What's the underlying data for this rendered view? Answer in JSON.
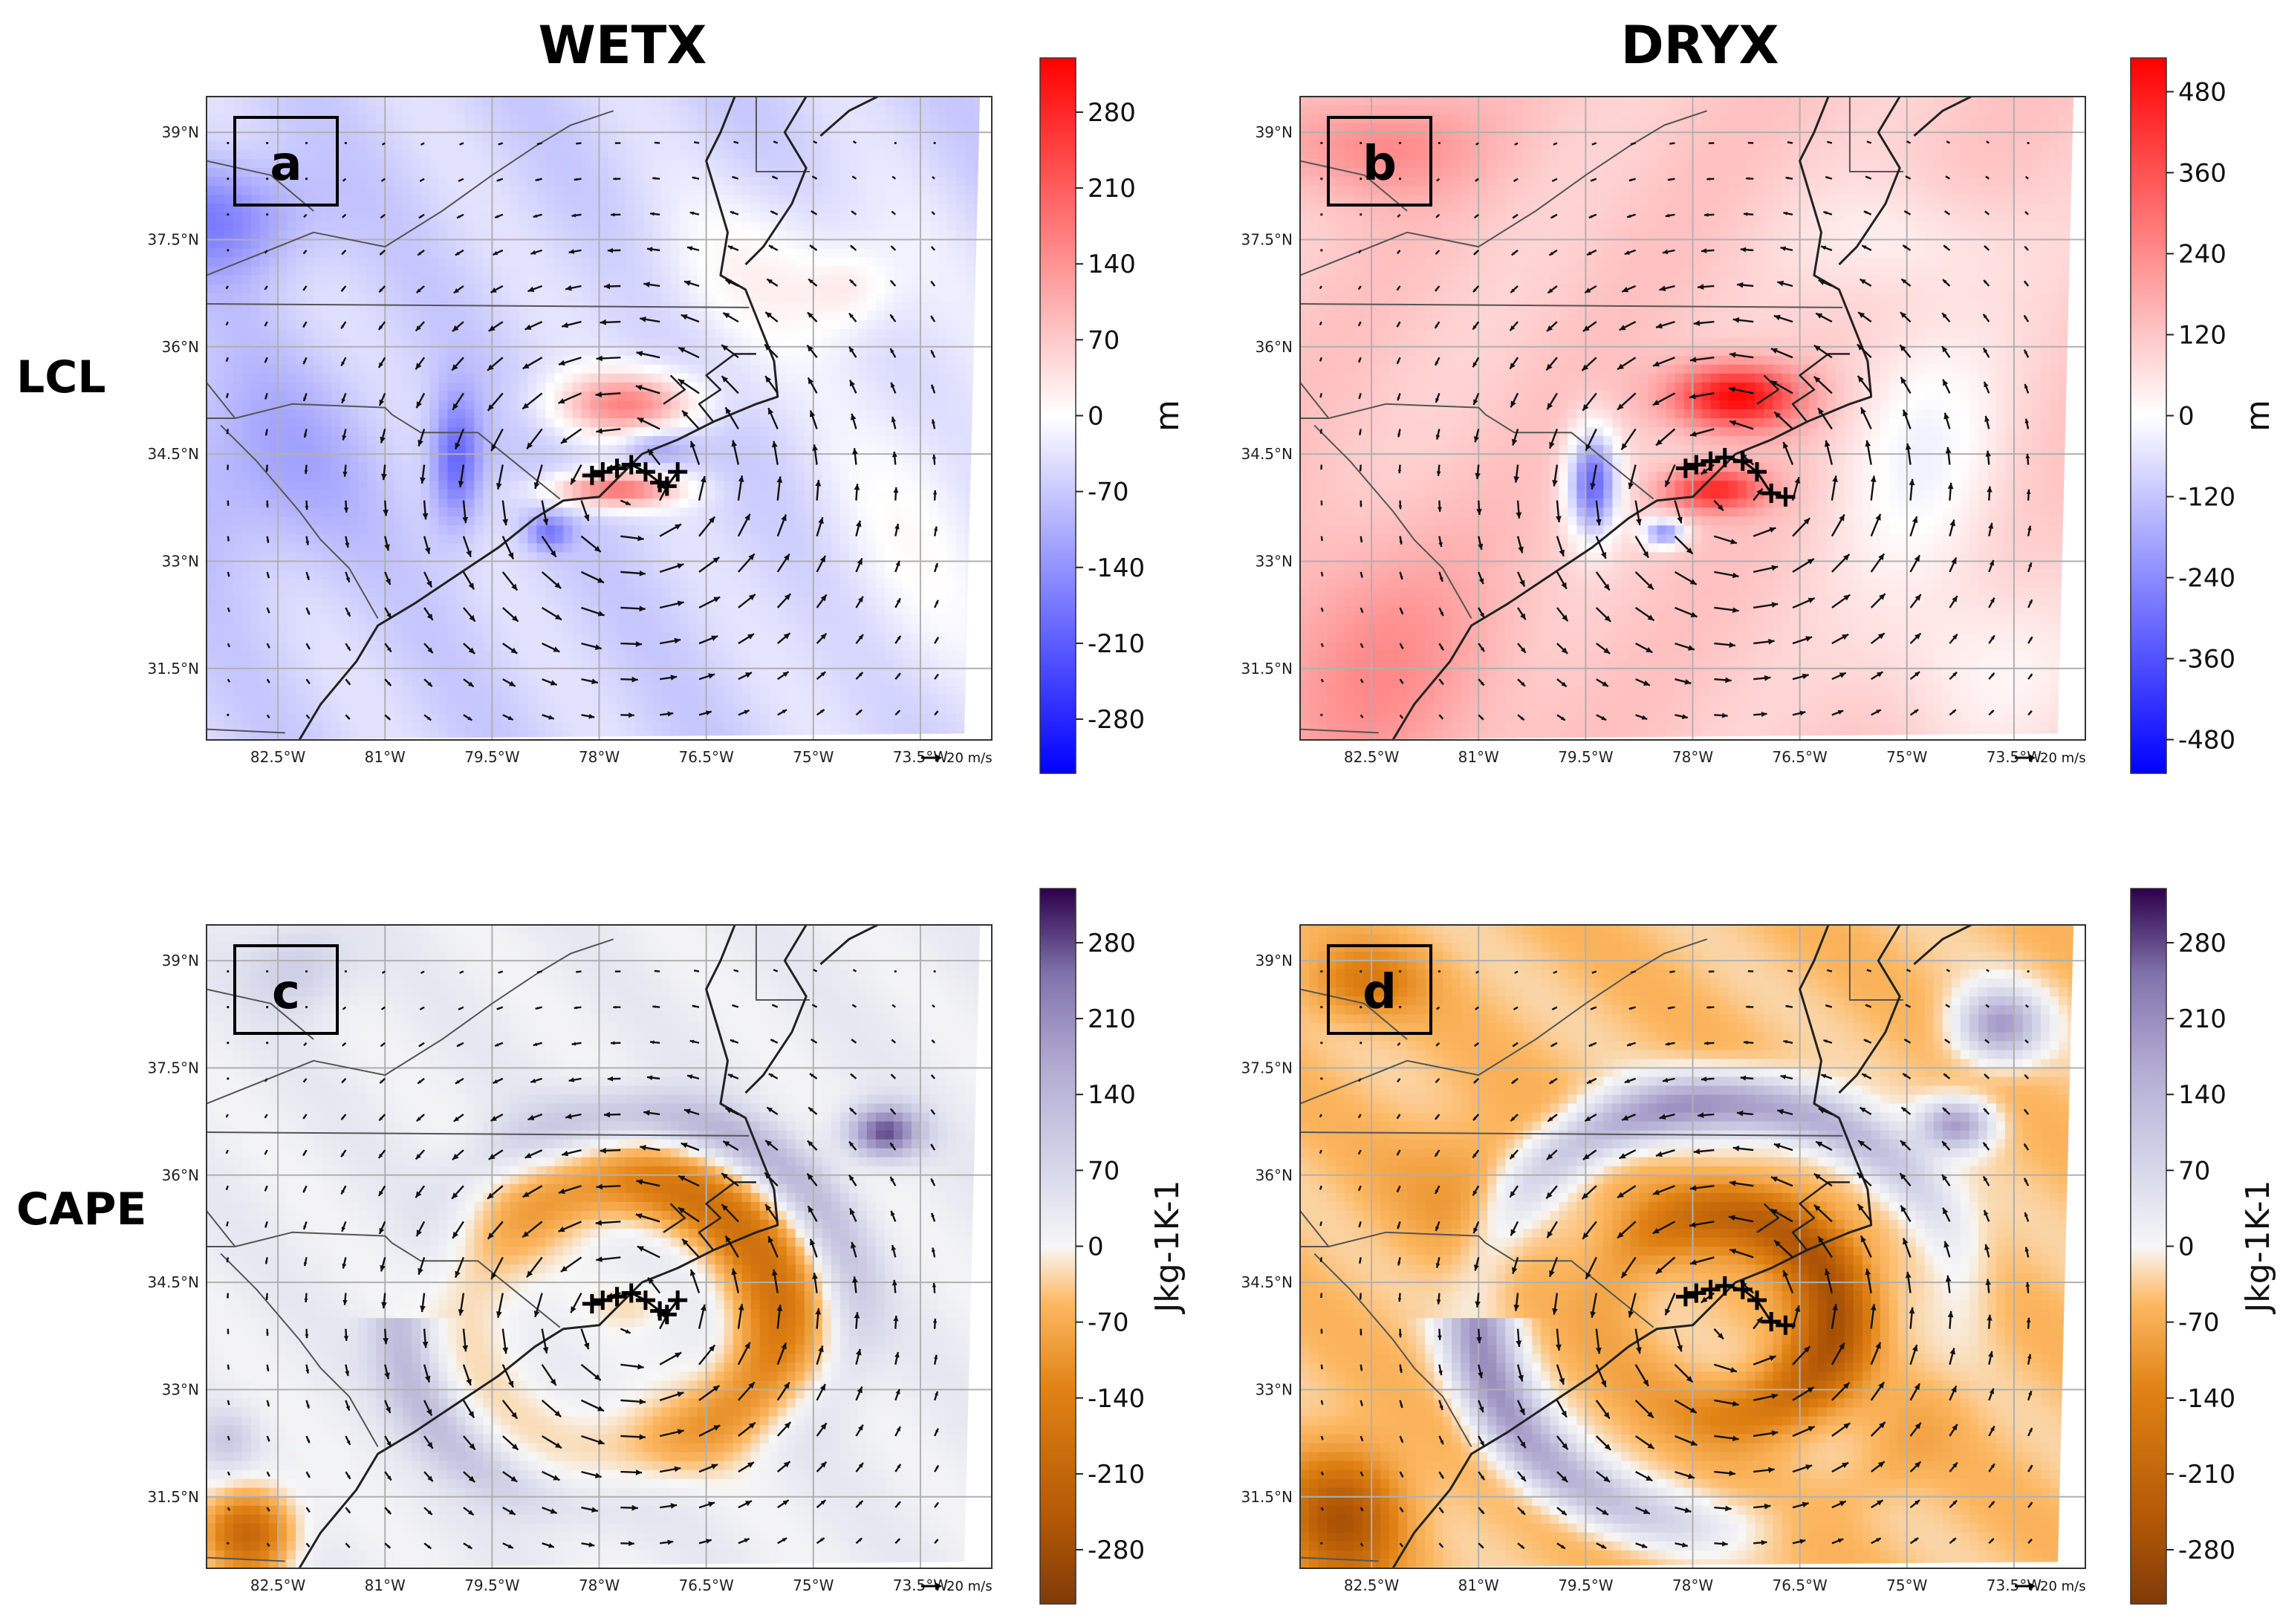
{
  "figure": {
    "column_titles": [
      "WETX",
      "DRYX"
    ],
    "row_labels": [
      "LCL",
      "CAPE"
    ]
  },
  "chart_data": [
    {
      "type": "heatmap",
      "panel": "a",
      "column": "WETX",
      "row": "LCL",
      "variable": "LCL",
      "xticks": [
        "82.5°W",
        "81°W",
        "79.5°W",
        "78°W",
        "76.5°W",
        "75°W",
        "73.5°W"
      ],
      "yticks": [
        "39°N",
        "37.5°N",
        "36°N",
        "34.5°N",
        "33°N",
        "31.5°N"
      ],
      "xlim": [
        -83.5,
        -72.5
      ],
      "ylim": [
        30.5,
        39.5
      ],
      "colorbar": {
        "ticks": [
          280,
          210,
          140,
          70,
          0,
          -70,
          -140,
          -210,
          -280
        ],
        "range": [
          -330,
          330
        ],
        "unit": "m",
        "colormap": "bwr"
      },
      "vector_scale": "20 m/s",
      "track": [
        [
          -78.1,
          34.2
        ],
        [
          -77.95,
          34.25
        ],
        [
          -77.75,
          34.3
        ],
        [
          -77.55,
          34.35
        ],
        [
          -77.35,
          34.25
        ],
        [
          -77.15,
          34.1
        ],
        [
          -77.05,
          34.05
        ],
        [
          -76.9,
          34.25
        ]
      ]
    },
    {
      "type": "heatmap",
      "panel": "b",
      "column": "DRYX",
      "row": "LCL",
      "variable": "LCL",
      "xticks": [
        "82.5°W",
        "81°W",
        "79.5°W",
        "78°W",
        "76.5°W",
        "75°W",
        "73.5°W"
      ],
      "yticks": [
        "39°N",
        "37.5°N",
        "36°N",
        "34.5°N",
        "33°N",
        "31.5°N"
      ],
      "xlim": [
        -83.5,
        -72.5
      ],
      "ylim": [
        30.5,
        39.5
      ],
      "colorbar": {
        "ticks": [
          480,
          360,
          240,
          120,
          0,
          -120,
          -240,
          -360,
          -480
        ],
        "range": [
          -530,
          530
        ],
        "unit": "m",
        "colormap": "bwr"
      },
      "vector_scale": "20 m/s",
      "track": [
        [
          -78.1,
          34.3
        ],
        [
          -77.95,
          34.35
        ],
        [
          -77.75,
          34.4
        ],
        [
          -77.55,
          34.45
        ],
        [
          -77.3,
          34.4
        ],
        [
          -77.1,
          34.25
        ],
        [
          -76.9,
          33.95
        ],
        [
          -76.7,
          33.9
        ]
      ]
    },
    {
      "type": "heatmap",
      "panel": "c",
      "column": "WETX",
      "row": "CAPE",
      "variable": "CAPE",
      "xticks": [
        "82.5°W",
        "81°W",
        "79.5°W",
        "78°W",
        "76.5°W",
        "75°W",
        "73.5°W"
      ],
      "yticks": [
        "39°N",
        "37.5°N",
        "36°N",
        "34.5°N",
        "33°N",
        "31.5°N"
      ],
      "xlim": [
        -83.5,
        -72.5
      ],
      "ylim": [
        30.5,
        39.5
      ],
      "colorbar": {
        "ticks": [
          280,
          210,
          140,
          70,
          0,
          -70,
          -140,
          -210,
          -280
        ],
        "range": [
          -330,
          330
        ],
        "unit": "Jkg-1K-1",
        "colormap": "PuOr"
      },
      "vector_scale": "20 m/s",
      "track": [
        [
          -78.1,
          34.2
        ],
        [
          -77.95,
          34.25
        ],
        [
          -77.75,
          34.3
        ],
        [
          -77.55,
          34.35
        ],
        [
          -77.35,
          34.25
        ],
        [
          -77.15,
          34.1
        ],
        [
          -77.05,
          34.05
        ],
        [
          -76.9,
          34.25
        ]
      ]
    },
    {
      "type": "heatmap",
      "panel": "d",
      "column": "DRYX",
      "row": "CAPE",
      "variable": "CAPE",
      "xticks": [
        "82.5°W",
        "81°W",
        "79.5°W",
        "78°W",
        "76.5°W",
        "75°W",
        "73.5°W"
      ],
      "yticks": [
        "39°N",
        "37.5°N",
        "36°N",
        "34.5°N",
        "33°N",
        "31.5°N"
      ],
      "xlim": [
        -83.5,
        -72.5
      ],
      "ylim": [
        30.5,
        39.5
      ],
      "colorbar": {
        "ticks": [
          280,
          210,
          140,
          70,
          0,
          -70,
          -140,
          -210,
          -280
        ],
        "range": [
          -330,
          330
        ],
        "unit": "Jkg-1K-1",
        "colormap": "PuOr"
      },
      "vector_scale": "20 m/s",
      "track": [
        [
          -78.1,
          34.3
        ],
        [
          -77.95,
          34.35
        ],
        [
          -77.75,
          34.4
        ],
        [
          -77.55,
          34.45
        ],
        [
          -77.3,
          34.4
        ],
        [
          -77.1,
          34.25
        ],
        [
          -76.9,
          33.95
        ],
        [
          -76.7,
          33.9
        ]
      ]
    }
  ]
}
